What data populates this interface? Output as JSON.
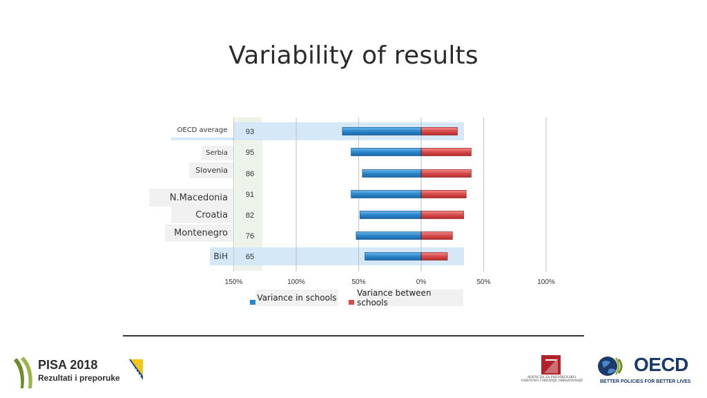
{
  "slide": {
    "title": "Variability of results"
  },
  "chart_data": {
    "type": "bar",
    "orientation": "horizontal-diverging",
    "categories": [
      "OECD average",
      "Serbia",
      "Slovenia",
      "N.Macedonia",
      "Croatia",
      "Montenegro",
      "BiH"
    ],
    "highlighted": [
      "OECD average",
      "BiH"
    ],
    "series": [
      {
        "name": "Variance in schools",
        "color": "#2a86cc",
        "values": [
          63,
          56,
          47,
          56,
          49,
          52,
          45
        ]
      },
      {
        "name": "Variance between schools",
        "color": "#d84a4a",
        "values": [
          29,
          40,
          40,
          36,
          34,
          25,
          21
        ]
      }
    ],
    "totals": [
      "93",
      "95",
      "86",
      "91",
      "82",
      "76",
      "65"
    ],
    "xaxis": {
      "ticks": [
        "150%",
        "100%",
        "50%",
        "0%",
        "50%",
        "100%"
      ],
      "range": [
        -150,
        100
      ]
    },
    "grid": true,
    "legend": {
      "position": "bottom"
    }
  },
  "logos": {
    "pisa_title": "PISA 2018",
    "pisa_subtitle": "Rezultati i preporuke",
    "agency_text": "AGENCIJA ZA PREDŠKOLSKO, OSNOVNO I SREDNJE OBRAZOVANJE",
    "oecd_name": "OECD",
    "oecd_tagline": "BETTER POLICIES FOR BETTER LIVES",
    "colors": {
      "pisa_green": "#6f8c2d",
      "oecd_blue": "#1a3a6c",
      "agency_red": "#b0232a"
    }
  }
}
